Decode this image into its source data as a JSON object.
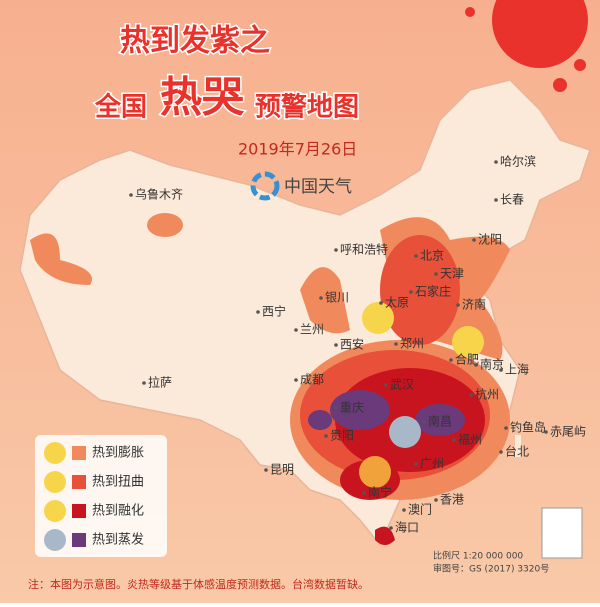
{
  "header": {
    "title_line1": "热到发紫之",
    "title_line2": [
      "全国",
      "热哭",
      "预警地图"
    ],
    "date": "2019年7月26日",
    "brand": "中国天气"
  },
  "cities": [
    "乌鲁木齐",
    "哈尔滨",
    "长春",
    "沈阳",
    "呼和浩特",
    "北京",
    "天津",
    "石家庄",
    "济南",
    "太原",
    "银川",
    "西宁",
    "兰州",
    "西安",
    "郑州",
    "合肥",
    "南京",
    "上海",
    "杭州",
    "武汉",
    "成都",
    "重庆",
    "贵阳",
    "南昌",
    "福州",
    "台北",
    "昆明",
    "南宁",
    "广州",
    "澳门",
    "香港",
    "海口",
    "拉萨",
    "钓鱼岛",
    "赤尾屿"
  ],
  "legend": [
    {
      "label": "热到膨胀",
      "color": "#f08a5d"
    },
    {
      "label": "热到扭曲",
      "color": "#e8503a"
    },
    {
      "label": "热到融化",
      "color": "#c8141e"
    },
    {
      "label": "热到蒸发",
      "color": "#6a3a7a"
    }
  ],
  "scale": "比例尺 1:20 000 000",
  "approval": "审图号：GS (2017) 3320号",
  "note": "注：本图为示意图。炎热等级基于体感温度预测数据。台湾数据暂缺。"
}
